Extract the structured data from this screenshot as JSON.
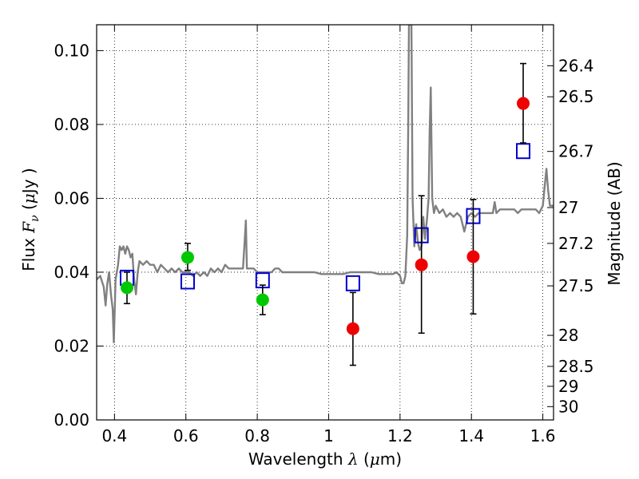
{
  "chart_data": {
    "type": "scatter",
    "title": "",
    "xlabel": {
      "text": "Wavelength",
      "symbol": "λ",
      "unit_prefix": "(",
      "unit_mu": "μ",
      "unit_rest": "m)"
    },
    "ylabel": {
      "text": "Flux",
      "symbol": "F",
      "subscript": "ν",
      "unit_prefix": "(",
      "unit_mu": "μ",
      "unit_rest": "Jy )"
    },
    "y2label": "Magnitude (AB)",
    "xlim": [
      0.35,
      1.63
    ],
    "ylim": [
      0.0,
      0.107
    ],
    "grid": true,
    "x_ticks": [
      {
        "value": 0.4,
        "label": "0.4"
      },
      {
        "value": 0.6,
        "label": "0.6"
      },
      {
        "value": 0.8,
        "label": "0.8"
      },
      {
        "value": 1.0,
        "label": "1"
      },
      {
        "value": 1.2,
        "label": "1.2"
      },
      {
        "value": 1.4,
        "label": "1.4"
      },
      {
        "value": 1.6,
        "label": "1.6"
      }
    ],
    "y_ticks": [
      {
        "value": 0.0,
        "label": "0.00"
      },
      {
        "value": 0.02,
        "label": "0.02"
      },
      {
        "value": 0.04,
        "label": "0.04"
      },
      {
        "value": 0.06,
        "label": "0.06"
      },
      {
        "value": 0.08,
        "label": "0.08"
      },
      {
        "value": 0.1,
        "label": "0.10"
      }
    ],
    "y2_ticks": [
      {
        "flux": 0.0959,
        "label": "26.4"
      },
      {
        "flux": 0.0875,
        "label": "26.5"
      },
      {
        "flux": 0.0727,
        "label": "26.7"
      },
      {
        "flux": 0.0575,
        "label": "27"
      },
      {
        "flux": 0.0478,
        "label": "27.2"
      },
      {
        "flux": 0.0363,
        "label": "27.5"
      },
      {
        "flux": 0.0229,
        "label": "28"
      },
      {
        "flux": 0.0145,
        "label": "28.5"
      },
      {
        "flux": 0.0091,
        "label": "29"
      },
      {
        "flux": 0.0036,
        "label": "30"
      }
    ],
    "series": [
      {
        "kind": "line",
        "color": "#808080",
        "points": [
          [
            0.35,
            0.038
          ],
          [
            0.36,
            0.039
          ],
          [
            0.37,
            0.036
          ],
          [
            0.375,
            0.031
          ],
          [
            0.38,
            0.037
          ],
          [
            0.385,
            0.04
          ],
          [
            0.39,
            0.034
          ],
          [
            0.395,
            0.03
          ],
          [
            0.398,
            0.021
          ],
          [
            0.403,
            0.038
          ],
          [
            0.41,
            0.042
          ],
          [
            0.415,
            0.047
          ],
          [
            0.42,
            0.046
          ],
          [
            0.425,
            0.047
          ],
          [
            0.43,
            0.045
          ],
          [
            0.435,
            0.047
          ],
          [
            0.44,
            0.046
          ],
          [
            0.445,
            0.044
          ],
          [
            0.45,
            0.045
          ],
          [
            0.455,
            0.038
          ],
          [
            0.46,
            0.034
          ],
          [
            0.465,
            0.04
          ],
          [
            0.47,
            0.043
          ],
          [
            0.48,
            0.042
          ],
          [
            0.49,
            0.043
          ],
          [
            0.5,
            0.042
          ],
          [
            0.51,
            0.042
          ],
          [
            0.52,
            0.04
          ],
          [
            0.53,
            0.042
          ],
          [
            0.54,
            0.041
          ],
          [
            0.55,
            0.04
          ],
          [
            0.56,
            0.041
          ],
          [
            0.57,
            0.04
          ],
          [
            0.58,
            0.041
          ],
          [
            0.59,
            0.04
          ],
          [
            0.6,
            0.04
          ],
          [
            0.61,
            0.04
          ],
          [
            0.62,
            0.039
          ],
          [
            0.63,
            0.04
          ],
          [
            0.64,
            0.039
          ],
          [
            0.65,
            0.04
          ],
          [
            0.66,
            0.039
          ],
          [
            0.67,
            0.041
          ],
          [
            0.68,
            0.04
          ],
          [
            0.69,
            0.041
          ],
          [
            0.7,
            0.04
          ],
          [
            0.71,
            0.042
          ],
          [
            0.72,
            0.041
          ],
          [
            0.73,
            0.041
          ],
          [
            0.74,
            0.041
          ],
          [
            0.75,
            0.041
          ],
          [
            0.76,
            0.041
          ],
          [
            0.765,
            0.049
          ],
          [
            0.768,
            0.054
          ],
          [
            0.771,
            0.041
          ],
          [
            0.78,
            0.041
          ],
          [
            0.79,
            0.041
          ],
          [
            0.8,
            0.04
          ],
          [
            0.81,
            0.04
          ],
          [
            0.82,
            0.04
          ],
          [
            0.83,
            0.04
          ],
          [
            0.84,
            0.04
          ],
          [
            0.85,
            0.041
          ],
          [
            0.86,
            0.041
          ],
          [
            0.87,
            0.04
          ],
          [
            0.88,
            0.04
          ],
          [
            0.9,
            0.04
          ],
          [
            0.92,
            0.04
          ],
          [
            0.94,
            0.04
          ],
          [
            0.96,
            0.04
          ],
          [
            0.98,
            0.0395
          ],
          [
            1.0,
            0.0395
          ],
          [
            1.02,
            0.0395
          ],
          [
            1.04,
            0.0395
          ],
          [
            1.06,
            0.04
          ],
          [
            1.08,
            0.04
          ],
          [
            1.1,
            0.04
          ],
          [
            1.12,
            0.04
          ],
          [
            1.14,
            0.0395
          ],
          [
            1.16,
            0.0395
          ],
          [
            1.18,
            0.0395
          ],
          [
            1.19,
            0.04
          ],
          [
            1.2,
            0.039
          ],
          [
            1.205,
            0.037
          ],
          [
            1.21,
            0.037
          ],
          [
            1.215,
            0.039
          ],
          [
            1.22,
            0.05
          ],
          [
            1.223,
            0.08
          ],
          [
            1.225,
            0.107
          ],
          [
            1.228,
            0.107
          ],
          [
            1.232,
            0.107
          ],
          [
            1.235,
            0.06
          ],
          [
            1.24,
            0.047
          ],
          [
            1.245,
            0.053
          ],
          [
            1.25,
            0.048
          ],
          [
            1.255,
            0.046
          ],
          [
            1.26,
            0.047
          ],
          [
            1.265,
            0.055
          ],
          [
            1.27,
            0.049
          ],
          [
            1.275,
            0.054
          ],
          [
            1.28,
            0.06
          ],
          [
            1.283,
            0.078
          ],
          [
            1.286,
            0.09
          ],
          [
            1.29,
            0.06
          ],
          [
            1.295,
            0.056
          ],
          [
            1.3,
            0.058
          ],
          [
            1.31,
            0.056
          ],
          [
            1.32,
            0.057
          ],
          [
            1.33,
            0.055
          ],
          [
            1.34,
            0.056
          ],
          [
            1.35,
            0.055
          ],
          [
            1.36,
            0.056
          ],
          [
            1.37,
            0.055
          ],
          [
            1.38,
            0.051
          ],
          [
            1.39,
            0.055
          ],
          [
            1.4,
            0.056
          ],
          [
            1.41,
            0.055
          ],
          [
            1.42,
            0.056
          ],
          [
            1.43,
            0.056
          ],
          [
            1.44,
            0.056
          ],
          [
            1.45,
            0.056
          ],
          [
            1.46,
            0.056
          ],
          [
            1.465,
            0.059
          ],
          [
            1.47,
            0.056
          ],
          [
            1.48,
            0.057
          ],
          [
            1.49,
            0.057
          ],
          [
            1.5,
            0.057
          ],
          [
            1.51,
            0.057
          ],
          [
            1.52,
            0.057
          ],
          [
            1.53,
            0.056
          ],
          [
            1.54,
            0.057
          ],
          [
            1.55,
            0.057
          ],
          [
            1.56,
            0.057
          ],
          [
            1.57,
            0.057
          ],
          [
            1.58,
            0.057
          ],
          [
            1.59,
            0.056
          ],
          [
            1.6,
            0.058
          ],
          [
            1.605,
            0.063
          ],
          [
            1.61,
            0.068
          ],
          [
            1.615,
            0.062
          ],
          [
            1.62,
            0.058
          ],
          [
            1.63,
            0.058
          ]
        ]
      },
      {
        "kind": "open-square",
        "color": "#0000cc",
        "points": [
          [
            0.435,
            0.0385
          ],
          [
            0.605,
            0.0375
          ],
          [
            0.815,
            0.0378
          ],
          [
            1.068,
            0.037
          ],
          [
            1.26,
            0.05
          ],
          [
            1.405,
            0.0552
          ],
          [
            1.545,
            0.0728
          ]
        ]
      },
      {
        "kind": "filled-circle",
        "color": "#00c800",
        "points": [
          {
            "x": 0.435,
            "y": 0.0358,
            "yerr": [
              0.0315,
              0.04
            ]
          },
          {
            "x": 0.605,
            "y": 0.044,
            "yerr": [
              0.0405,
              0.0478
            ]
          },
          {
            "x": 0.815,
            "y": 0.0325,
            "yerr": [
              0.0285,
              0.0365
            ]
          }
        ]
      },
      {
        "kind": "filled-circle",
        "color": "#ee0000",
        "points": [
          {
            "x": 1.068,
            "y": 0.0247,
            "yerr": [
              0.0148,
              0.0345
            ]
          },
          {
            "x": 1.26,
            "y": 0.042,
            "yerr": [
              0.0235,
              0.0607
            ]
          },
          {
            "x": 1.405,
            "y": 0.0442,
            "yerr": [
              0.0287,
              0.0597
            ]
          },
          {
            "x": 1.545,
            "y": 0.0857,
            "yerr": [
              0.075,
              0.0965
            ]
          }
        ]
      }
    ]
  }
}
